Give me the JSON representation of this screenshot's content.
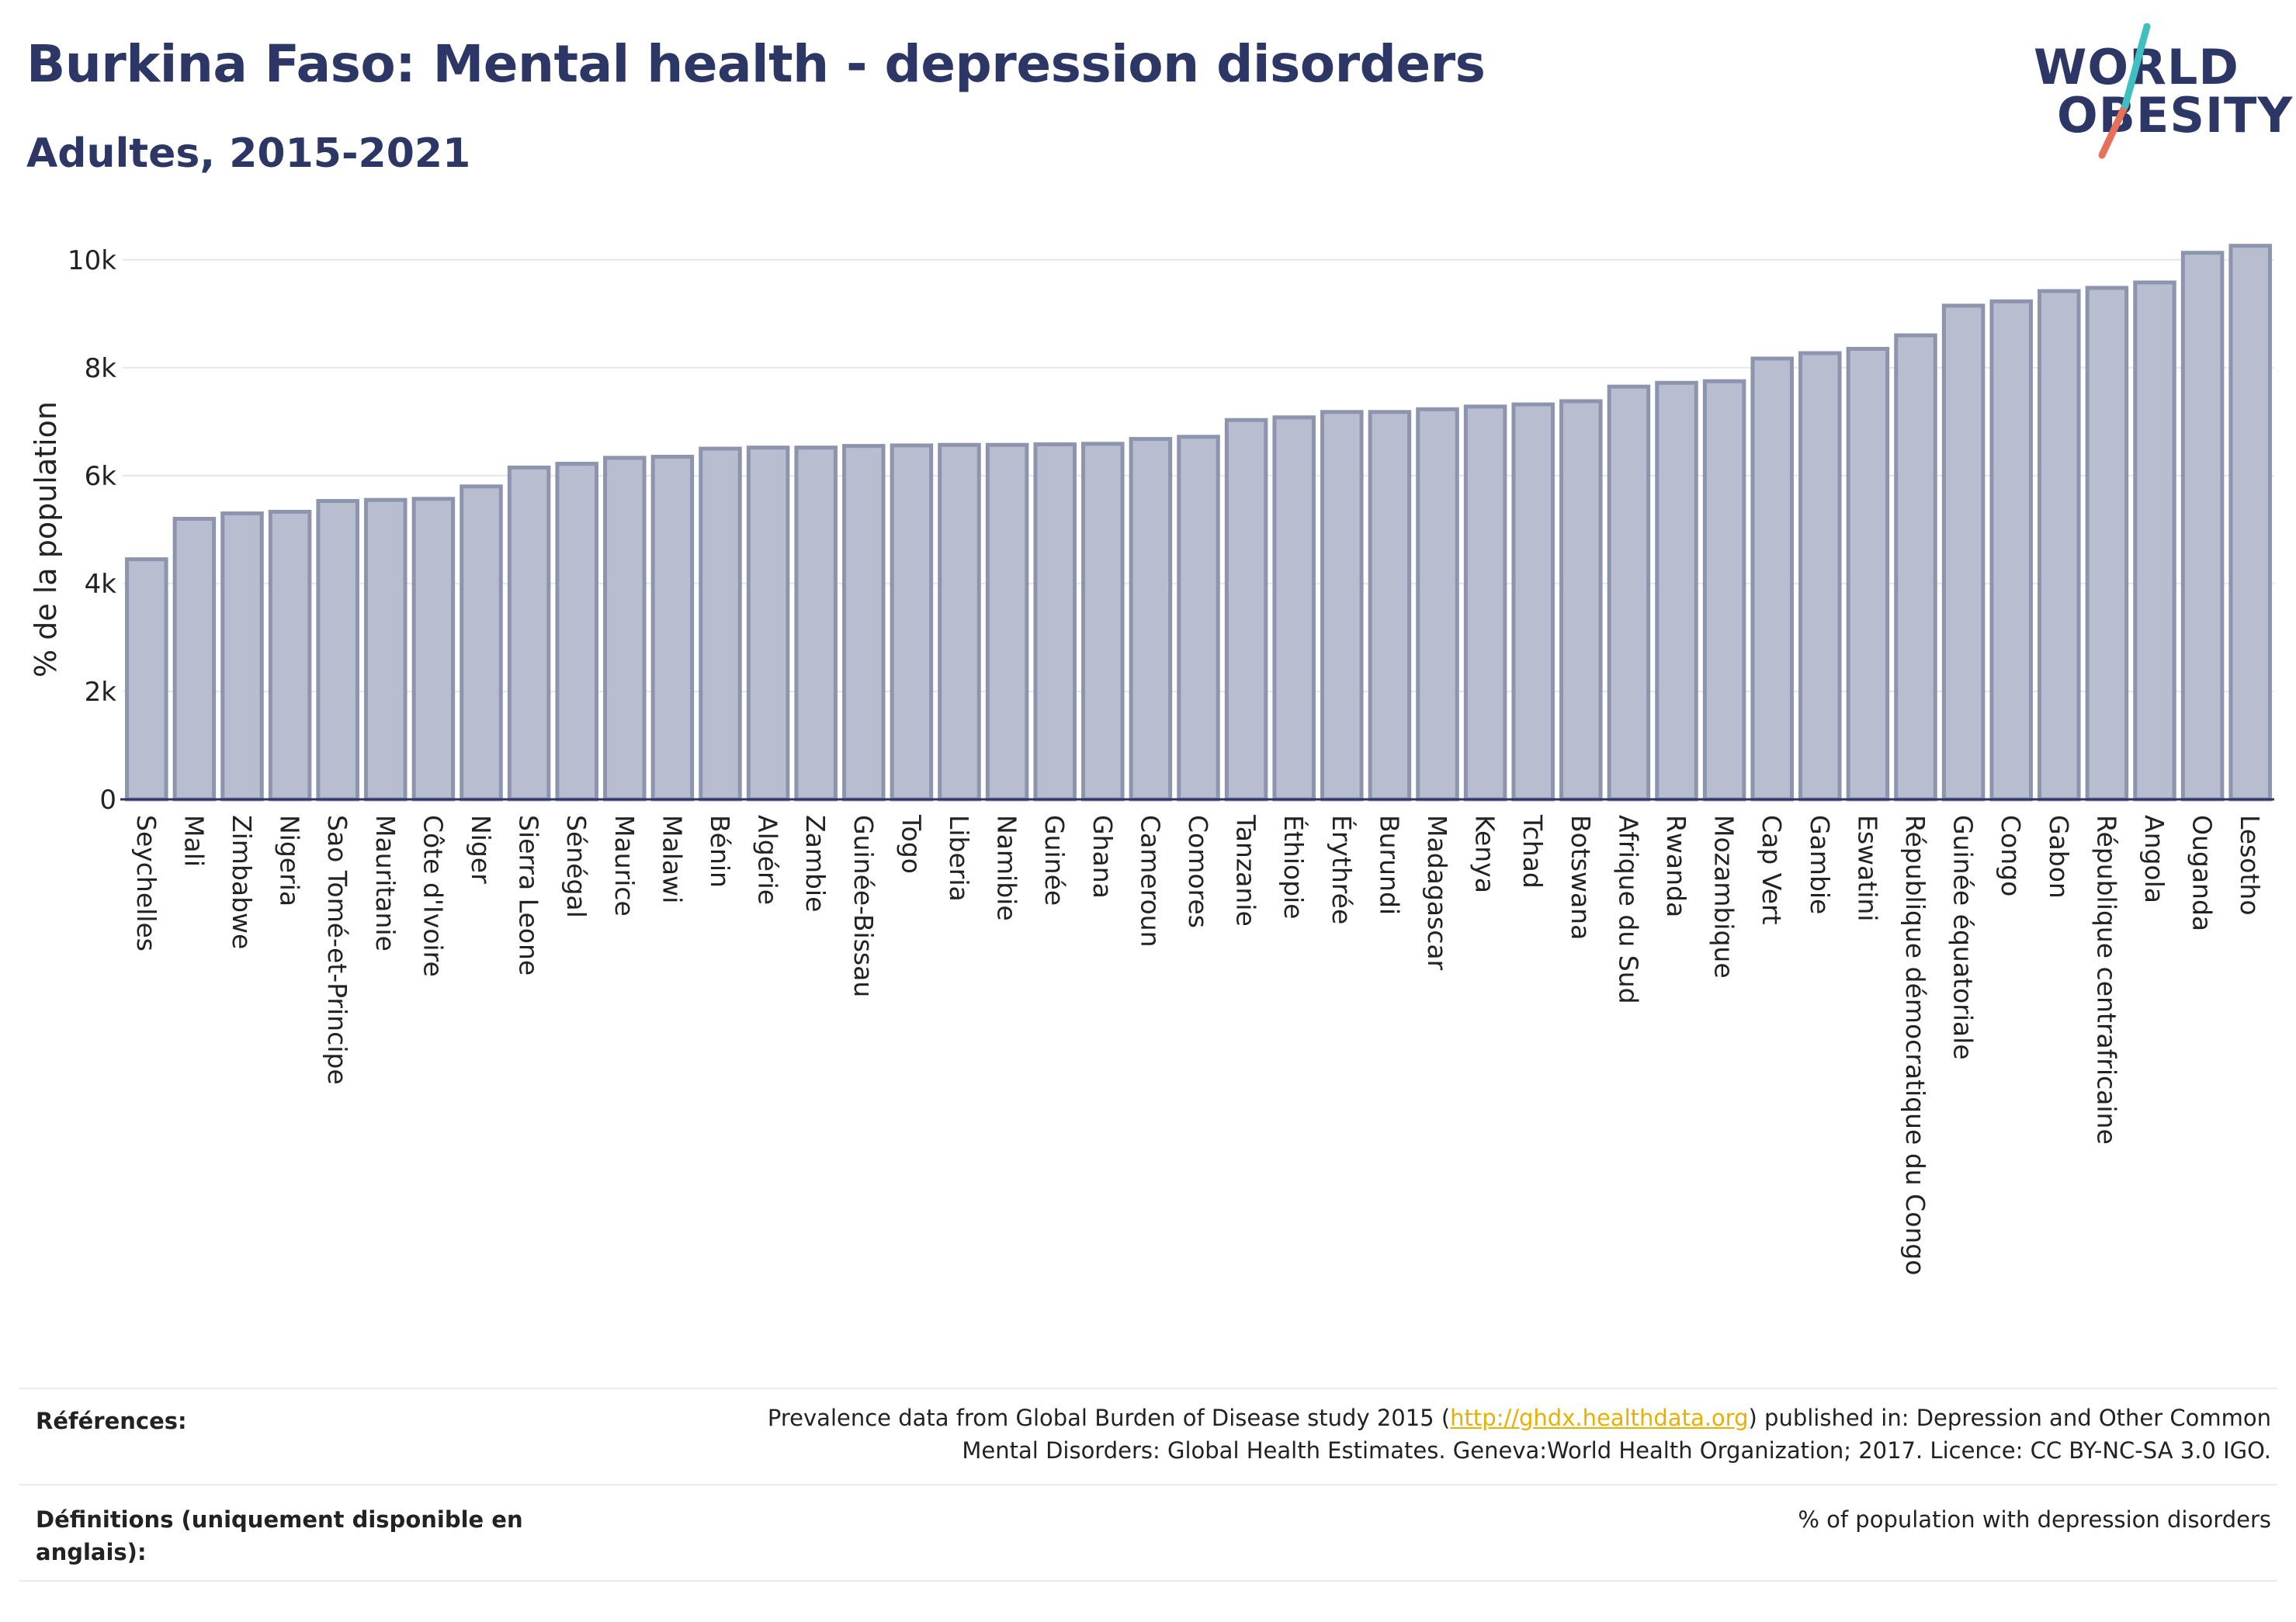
{
  "header": {
    "title": "Burkina Faso: Mental health - depression disorders",
    "subtitle": "Adultes, 2015-2021"
  },
  "logo": {
    "line1": "WORLD",
    "line2": "OBESITY",
    "accent_colors": [
      "#3fbfbf",
      "#e8705a"
    ]
  },
  "chart_data": {
    "type": "bar",
    "ylabel": "% de la population",
    "ylim": [
      0,
      10500
    ],
    "yticks": [
      0,
      2000,
      4000,
      6000,
      8000,
      10000
    ],
    "ytick_labels": [
      "0",
      "2k",
      "4k",
      "6k",
      "8k",
      "10k"
    ],
    "grid": true,
    "bar_color": "#b8bdcf",
    "bar_edge_color": "#8d94ad",
    "categories": [
      "Seychelles",
      "Mali",
      "Zimbabwe",
      "Nigeria",
      "Sao Tomé-et-Principe",
      "Mauritanie",
      "Côte d'Ivoire",
      "Niger",
      "Sierra Leone",
      "Sénégal",
      "Maurice",
      "Malawi",
      "Bénin",
      "Algérie",
      "Zambie",
      "Guinée-Bissau",
      "Togo",
      "Liberia",
      "Namibie",
      "Guinée",
      "Ghana",
      "Cameroun",
      "Comores",
      "Tanzanie",
      "Éthiopie",
      "Érythrée",
      "Burundi",
      "Madagascar",
      "Kenya",
      "Tchad",
      "Botswana",
      "Afrique du Sud",
      "Rwanda",
      "Mozambique",
      "Cap Vert",
      "Gambie",
      "Eswatini",
      "République démocratique du Congo",
      "Guinée équatoriale",
      "Congo",
      "Gabon",
      "République centrafricaine",
      "Angola",
      "Ouganda",
      "Lesotho"
    ],
    "values": [
      4450,
      5200,
      5300,
      5330,
      5530,
      5550,
      5570,
      5800,
      6150,
      6220,
      6330,
      6350,
      6500,
      6520,
      6520,
      6550,
      6560,
      6570,
      6570,
      6580,
      6590,
      6680,
      6720,
      7030,
      7080,
      7180,
      7180,
      7230,
      7280,
      7320,
      7380,
      7650,
      7720,
      7750,
      8170,
      8270,
      8350,
      8600,
      9150,
      9230,
      9420,
      9480,
      9580,
      10130,
      10260
    ]
  },
  "footer": {
    "references_label": "Références:",
    "references_text_before": "Prevalence data from Global Burden of Disease study 2015 (",
    "references_link": "http://ghdx.healthdata.org",
    "references_text_after": ") published in: Depression and Other Common",
    "references_line2": "Mental Disorders: Global Health Estimates. Geneva:World Health Organization; 2017. Licence: CC BY-NC-SA 3.0 IGO.",
    "definitions_label_line1": "Définitions (uniquement disponible en",
    "definitions_label_line2": "anglais):",
    "definitions_text": "% of population with depression disorders"
  }
}
